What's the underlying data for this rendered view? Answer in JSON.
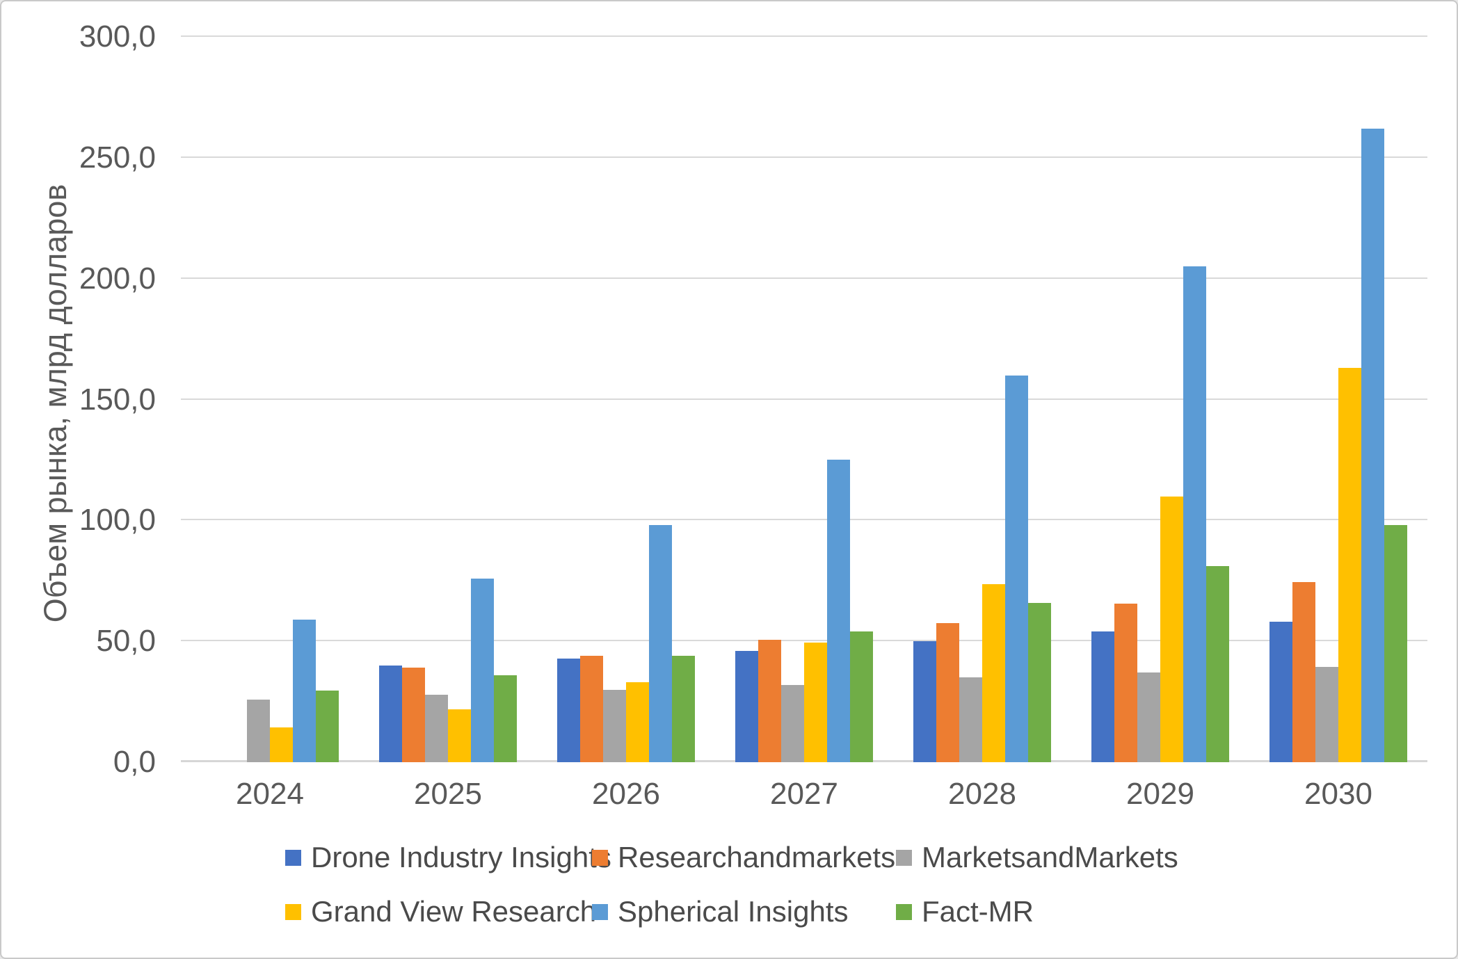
{
  "chart_data": {
    "type": "bar",
    "title": "",
    "xlabel": "",
    "ylabel": "Объем рынка, млрд долларов",
    "ylim": [
      0,
      300
    ],
    "ytick_step": 50,
    "ytick_labels": [
      "0,0",
      "50,0",
      "100,0",
      "150,0",
      "200,0",
      "250,0",
      "300,0"
    ],
    "grid": true,
    "legend_position": "bottom",
    "categories": [
      "2024",
      "2025",
      "2026",
      "2027",
      "2028",
      "2029",
      "2030"
    ],
    "series": [
      {
        "name": "Drone Industry Insights",
        "color": "#4472C4",
        "values": [
          null,
          40,
          43,
          46,
          50,
          54,
          58
        ]
      },
      {
        "name": "Researchandmarkets",
        "color": "#ED7D31",
        "values": [
          null,
          39,
          44,
          50.5,
          57.5,
          65.5,
          74.5
        ]
      },
      {
        "name": "MarketsandMarkets",
        "color": "#A5A5A5",
        "values": [
          26,
          28,
          30,
          32,
          35,
          37,
          39.5
        ]
      },
      {
        "name": "Grand View Research",
        "color": "#FFC000",
        "values": [
          14.5,
          22,
          33,
          49.5,
          73.5,
          110,
          163
        ]
      },
      {
        "name": "Spherical Insights",
        "color": "#5B9BD5",
        "values": [
          59,
          76,
          98,
          125,
          160,
          205,
          262
        ]
      },
      {
        "name": "Fact-MR",
        "color": "#70AD47",
        "values": [
          29.5,
          36,
          44,
          54,
          66,
          81,
          98
        ]
      }
    ]
  }
}
